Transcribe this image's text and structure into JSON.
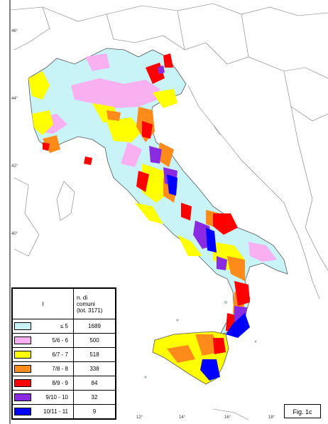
{
  "map": {
    "lat_labels": [
      "46°",
      "44°",
      "42°",
      "40°"
    ],
    "lon_labels": [
      "12°",
      "14°",
      "16°",
      "18°"
    ]
  },
  "legend": {
    "header_class": "I",
    "header_count_line1": "n. di",
    "header_count_line2": "comuni",
    "header_count_line3": "(tot. 3171)",
    "rows": [
      {
        "label": "≤  5",
        "count": "1689",
        "color": "#c8f4f8"
      },
      {
        "label": "5/6 - 6",
        "count": "500",
        "color": "#f8b0f0"
      },
      {
        "label": "6/7 - 7",
        "count": "518",
        "color": "#ffff00"
      },
      {
        "label": "7/8 - 8",
        "count": "338",
        "color": "#ff8c1a"
      },
      {
        "label": "8/9 - 9",
        "count": "84",
        "color": "#ff0000"
      },
      {
        "label": "9/10 - 10",
        "count": "32",
        "color": "#8a2be2"
      },
      {
        "label": "10/11 - 11",
        "count": "9",
        "color": "#0000ff"
      }
    ]
  },
  "figure_label": "Fig. 1c"
}
